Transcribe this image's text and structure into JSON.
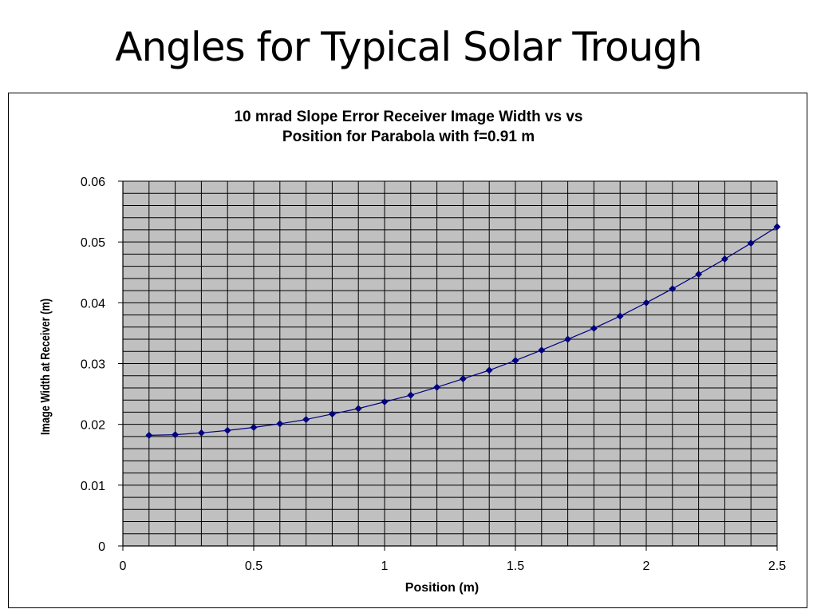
{
  "slide": {
    "title": "Angles for Typical Solar Trough"
  },
  "colors": {
    "plot_background": "#C0C0C0",
    "grid": "#000000",
    "series_line": "#000080",
    "marker": "#000080"
  },
  "chart_data": {
    "type": "line",
    "title_lines": [
      "10 mrad Slope Error Receiver Image Width vs vs",
      "Position for Parabola with f=0.91 m"
    ],
    "xlabel": "Position (m)",
    "ylabel": "Image Width at Receiver (m)",
    "xlim": [
      0,
      2.5
    ],
    "ylim": [
      0,
      0.06
    ],
    "x_ticks": [
      "0",
      "0.5",
      "1",
      "1.5",
      "2",
      "2.5"
    ],
    "y_ticks": [
      "0",
      "0.01",
      "0.02",
      "0.03",
      "0.04",
      "0.05",
      "0.06"
    ],
    "x_tick_values": [
      0,
      0.5,
      1,
      1.5,
      2,
      2.5
    ],
    "y_tick_values": [
      0,
      0.01,
      0.02,
      0.03,
      0.04,
      0.05,
      0.06
    ],
    "grid": true,
    "legend": "none",
    "marker": "diamond",
    "series": [
      {
        "x": [
          0.1,
          0.2,
          0.3,
          0.4,
          0.5,
          0.6,
          0.7,
          0.8,
          0.9,
          1.0,
          1.1,
          1.2,
          1.3,
          1.4,
          1.5,
          1.6,
          1.7,
          1.8,
          1.9,
          2.0,
          2.1,
          2.2,
          2.3,
          2.4,
          2.5
        ],
        "y": [
          0.0182,
          0.0183,
          0.0186,
          0.019,
          0.0195,
          0.0201,
          0.0208,
          0.0217,
          0.0226,
          0.0237,
          0.0248,
          0.0261,
          0.0275,
          0.0289,
          0.0305,
          0.0322,
          0.034,
          0.0358,
          0.0378,
          0.04,
          0.0423,
          0.0447,
          0.0472,
          0.0498,
          0.0525
        ]
      }
    ]
  }
}
